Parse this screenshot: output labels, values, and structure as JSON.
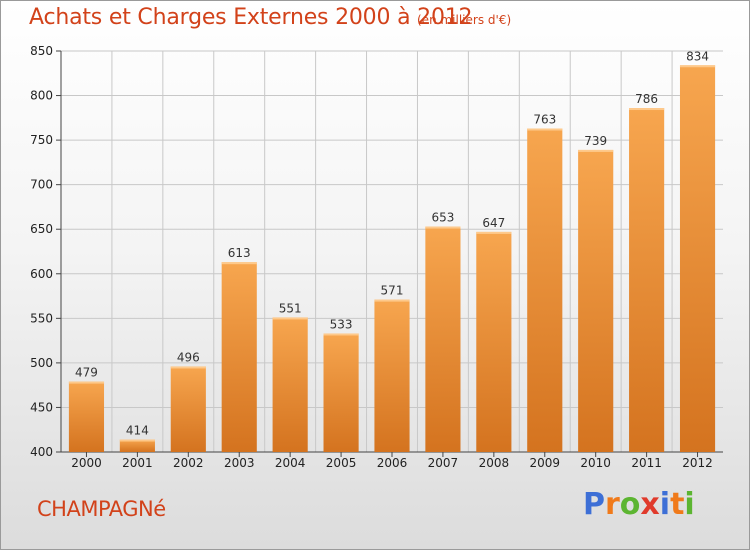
{
  "title": "Achats et Charges Externes 2000 à 2012",
  "subtitle": "(en milliers d'€)",
  "commune": "CHAMPAGNé",
  "logo": {
    "letters": [
      "P",
      "r",
      "o",
      "x",
      "i",
      "t",
      "i"
    ],
    "colors": [
      "#3d6fd6",
      "#f07a1a",
      "#5cb531",
      "#e03a2c",
      "#3d6fd6",
      "#f07a1a",
      "#5cb531"
    ]
  },
  "colors": {
    "title": "#d2421a",
    "bar_light": "#f7a64f",
    "bar_dark": "#d4731f",
    "grid": "#c8c8c8"
  },
  "chart_data": {
    "type": "bar",
    "title": "Achats et Charges Externes 2000 à 2012",
    "subtitle": "(en milliers d'€)",
    "categories": [
      "2000",
      "2001",
      "2002",
      "2003",
      "2004",
      "2005",
      "2006",
      "2007",
      "2008",
      "2009",
      "2010",
      "2011",
      "2012"
    ],
    "values": [
      479,
      414,
      496,
      613,
      551,
      533,
      571,
      653,
      647,
      763,
      739,
      786,
      834
    ],
    "xlabel": "",
    "ylabel": "",
    "ylim": [
      400,
      850
    ],
    "yticks": [
      400,
      450,
      500,
      550,
      600,
      650,
      700,
      750,
      800,
      850
    ],
    "grid": true,
    "legend": "none"
  }
}
